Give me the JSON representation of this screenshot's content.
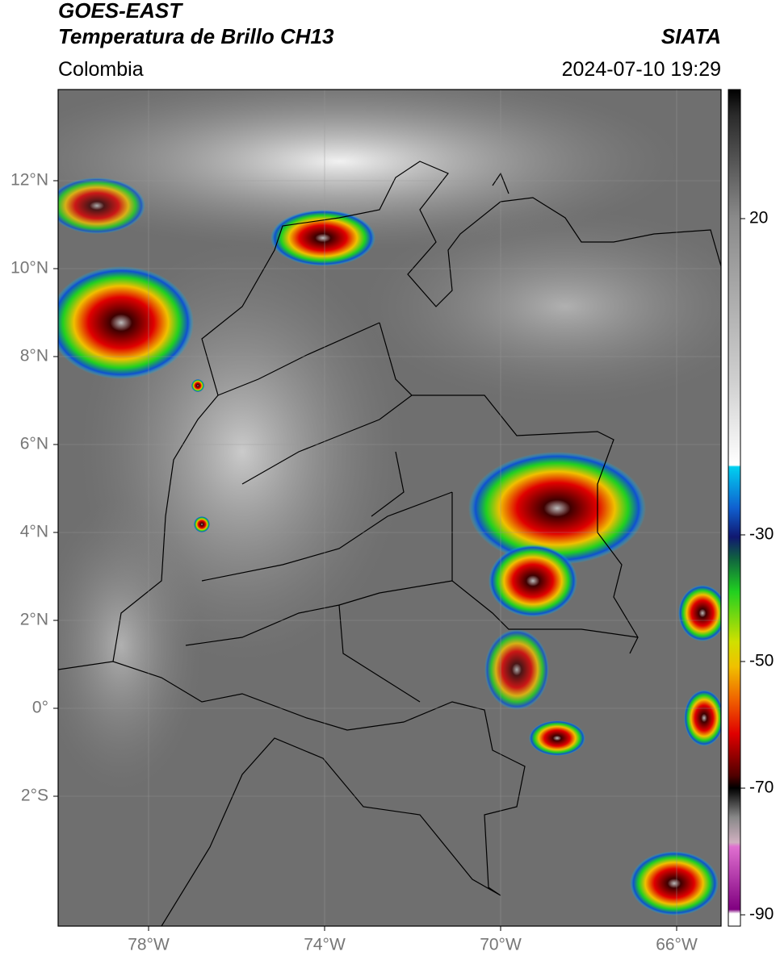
{
  "header": {
    "title": "GOES-EAST",
    "subtitle": "Temperatura de Brillo CH13",
    "region": "Colombia",
    "source": "SIATA",
    "datetime": "2024-07-10 19:29"
  },
  "map": {
    "lat_labels": [
      "12°N",
      "10°N",
      "8°N",
      "6°N",
      "4°N",
      "2°N",
      "0°",
      "2°S"
    ],
    "lon_labels": [
      "78°W",
      "74°W",
      "70°W",
      "66°W"
    ]
  },
  "colorbar": {
    "labels": [
      "20",
      "-30",
      "-50",
      "-70",
      "-90"
    ]
  }
}
